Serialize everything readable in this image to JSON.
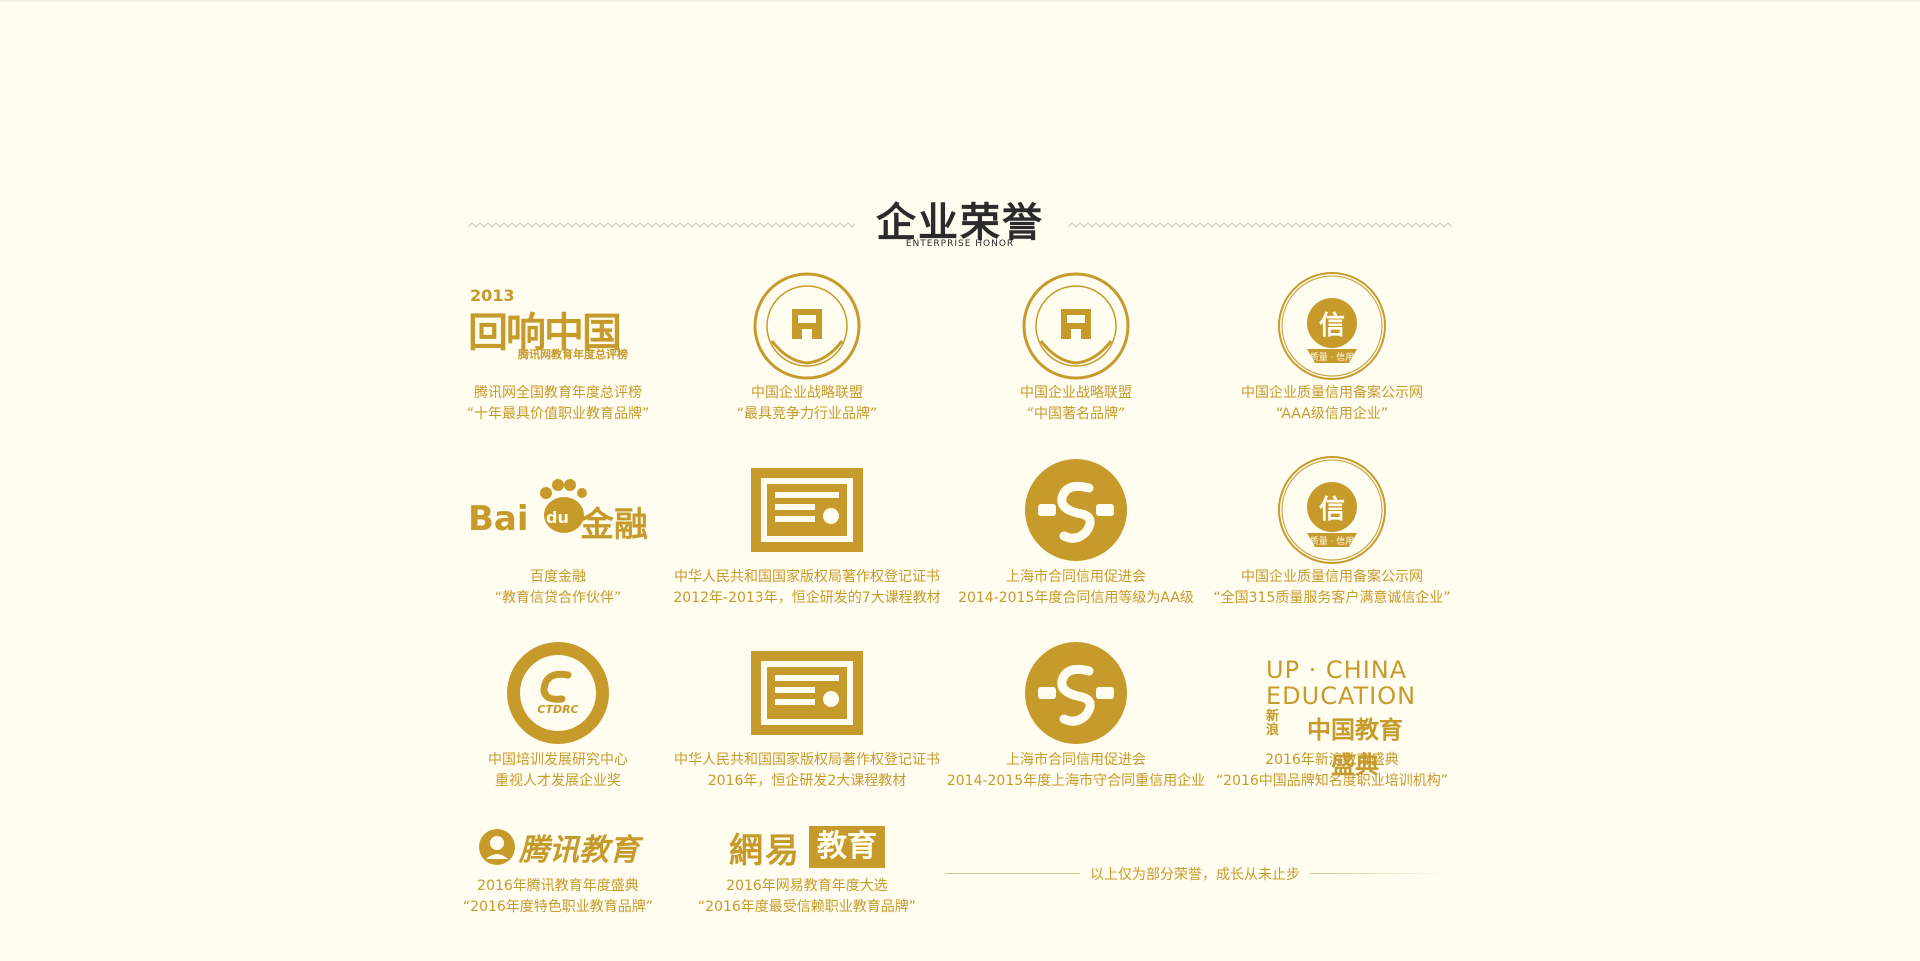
{
  "header": {
    "title": "企业荣誉",
    "subtitle": "ENTERPRISE HONOR"
  },
  "colors": {
    "accent": "#c79a2c",
    "background": "#fffdf0",
    "title": "#2b2b2b"
  },
  "logos": {
    "tencent_2013": {
      "year": "2013",
      "mark": "回响中国",
      "sub": "腾讯网教育年度总评榜"
    },
    "baidu": {
      "a": "Bai",
      "b": "du",
      "c": "金融"
    },
    "up_china": {
      "l1": "UP · CHINA",
      "l2": "EDUCATION",
      "l3a": "新",
      "l3b": "浪",
      "l3c": "中国教育盛典"
    },
    "tencent_edu": {
      "text": "腾讯教育"
    },
    "netease": {
      "a": "網易",
      "b": "教育"
    },
    "credit": {
      "center": "信",
      "bottom": "质量 · 信用"
    },
    "ctdrc": {
      "text": "CTDRC"
    }
  },
  "honors": [
    {
      "icon": "tencent-2013-logo",
      "line1": "腾讯网全国教育年度总评榜",
      "line2": "“十年最具价值职业教育品牌”"
    },
    {
      "icon": "strategic-alliance-seal",
      "line1": "中国企业战略联盟",
      "line2": "“最具竞争力行业品牌”"
    },
    {
      "icon": "strategic-alliance-seal",
      "line1": "中国企业战略联盟",
      "line2": "“中国著名品牌”"
    },
    {
      "icon": "credit-assessment-seal",
      "line1": "中国企业质量信用备案公示网",
      "line2": "“AAA级信用企业”"
    },
    {
      "icon": "baidu-finance-logo",
      "line1": "百度金融",
      "line2": "“教育信贷合作伙伴”"
    },
    {
      "icon": "certificate-icon",
      "line1": "中华人民共和国国家版权局著作权登记证书",
      "line2": "2012年-2013年，恒企研发的7大课程教材"
    },
    {
      "icon": "contract-credit-seal",
      "line1": "上海市合同信用促进会",
      "line2": "2014-2015年度合同信用等级为AA级"
    },
    {
      "icon": "credit-assessment-seal",
      "line1": "中国企业质量信用备案公示网",
      "line2": "“全国315质量服务客户满意诚信企业”"
    },
    {
      "icon": "ctdrc-seal",
      "line1": "中国培训发展研究中心",
      "line2": "重视人才发展企业奖"
    },
    {
      "icon": "certificate-icon",
      "line1": "中华人民共和国国家版权局著作权登记证书",
      "line2": "2016年，恒企研发2大课程教材"
    },
    {
      "icon": "contract-credit-seal",
      "line1": "上海市合同信用促进会",
      "line2": "2014-2015年度上海市守合同重信用企业"
    },
    {
      "icon": "sina-education-logo",
      "line1": "2016年新浪教育盛典",
      "line2": "“2016中国品牌知名度职业培训机构”"
    },
    {
      "icon": "tencent-education-logo",
      "line1": "2016年腾讯教育年度盛典",
      "line2": "“2016年度特色职业教育品牌”"
    },
    {
      "icon": "netease-education-logo",
      "line1": "2016年网易教育年度大选",
      "line2": "“2016年度最受信赖职业教育品牌”"
    }
  ],
  "footer_note": "以上仅为部分荣誉，成长从未止步"
}
